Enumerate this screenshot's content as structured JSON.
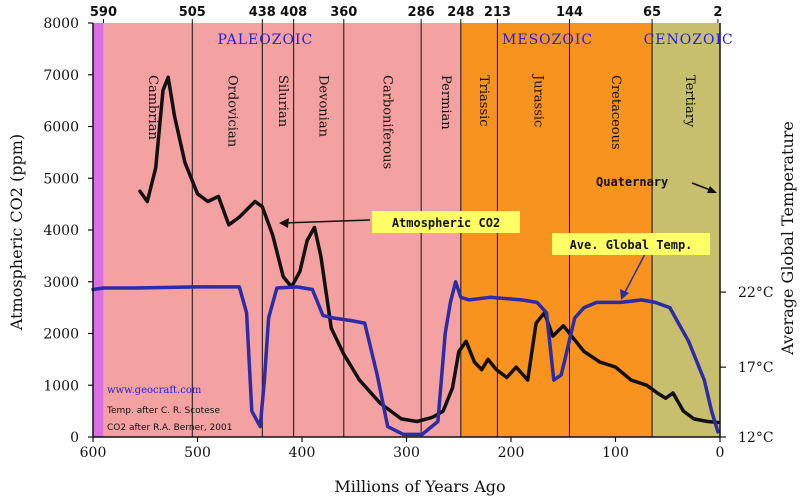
{
  "chart_data": {
    "type": "line",
    "xlabel": "Millions of Years Ago",
    "ylabel": "Atmospheric CO2 (ppm)",
    "y2label": "Average Global Temperature",
    "xlim": [
      600,
      0
    ],
    "ylim": [
      0,
      8000
    ],
    "x_ticks": [
      {
        "v": 600,
        "label": "600"
      },
      {
        "v": 500,
        "label": "500"
      },
      {
        "v": 400,
        "label": "400"
      },
      {
        "v": 300,
        "label": "300"
      },
      {
        "v": 200,
        "label": "200"
      },
      {
        "v": 100,
        "label": "100"
      },
      {
        "v": 0,
        "label": "0"
      }
    ],
    "y_ticks": [
      {
        "v": 0,
        "label": "0"
      },
      {
        "v": 1000,
        "label": "1000"
      },
      {
        "v": 2000,
        "label": "2000"
      },
      {
        "v": 3000,
        "label": "3000"
      },
      {
        "v": 4000,
        "label": "4000"
      },
      {
        "v": 5000,
        "label": "5000"
      },
      {
        "v": 6000,
        "label": "6000"
      },
      {
        "v": 7000,
        "label": "7000"
      },
      {
        "v": 8000,
        "label": "8000"
      }
    ],
    "y2_ticks": [
      {
        "temp": "22°C",
        "at_ppm": 2800
      },
      {
        "temp": "17°C",
        "at_ppm": 1350
      },
      {
        "temp": "12°C",
        "at_ppm": 0
      }
    ],
    "top_ticks": [
      {
        "v": 590,
        "label": "590"
      },
      {
        "v": 505,
        "label": "505"
      },
      {
        "v": 438,
        "label": "438"
      },
      {
        "v": 408,
        "label": "408"
      },
      {
        "v": 360,
        "label": "360"
      },
      {
        "v": 286,
        "label": "286"
      },
      {
        "v": 248,
        "label": "248"
      },
      {
        "v": 213,
        "label": "213"
      },
      {
        "v": 144,
        "label": "144"
      },
      {
        "v": 65,
        "label": "65"
      },
      {
        "v": 2,
        "label": "2"
      }
    ],
    "eras": [
      {
        "name": "PALEOZOIC",
        "from": 590,
        "to": 248,
        "color": "#f4a1a1"
      },
      {
        "name": "MESOZOIC",
        "from": 248,
        "to": 65,
        "color": "#f7931e"
      },
      {
        "name": "CENOZOIC",
        "from": 65,
        "to": 2,
        "color": "#c7be6e"
      }
    ],
    "pre_cambrian_color": "#d96fe0",
    "periods": [
      {
        "name": "Cambrian",
        "from": 590,
        "to": 505
      },
      {
        "name": "Ordovician",
        "from": 505,
        "to": 438
      },
      {
        "name": "Silurian",
        "from": 438,
        "to": 408
      },
      {
        "name": "Devonian",
        "from": 408,
        "to": 360
      },
      {
        "name": "Carboniferous",
        "from": 360,
        "to": 286
      },
      {
        "name": "Permian",
        "from": 286,
        "to": 248
      },
      {
        "name": "Triassic",
        "from": 248,
        "to": 213
      },
      {
        "name": "Jurassic",
        "from": 213,
        "to": 144
      },
      {
        "name": "Cretaceous",
        "from": 144,
        "to": 65
      },
      {
        "name": "Tertiary",
        "from": 65,
        "to": 2
      }
    ],
    "series": [
      {
        "name": "Atmospheric CO2",
        "color": "#111111",
        "points": [
          [
            555,
            4750
          ],
          [
            548,
            4550
          ],
          [
            540,
            5200
          ],
          [
            533,
            6700
          ],
          [
            528,
            6950
          ],
          [
            522,
            6200
          ],
          [
            512,
            5300
          ],
          [
            500,
            4700
          ],
          [
            490,
            4550
          ],
          [
            480,
            4650
          ],
          [
            470,
            4100
          ],
          [
            460,
            4250
          ],
          [
            445,
            4550
          ],
          [
            438,
            4450
          ],
          [
            428,
            3900
          ],
          [
            418,
            3100
          ],
          [
            410,
            2900
          ],
          [
            402,
            3200
          ],
          [
            395,
            3800
          ],
          [
            388,
            4050
          ],
          [
            382,
            3500
          ],
          [
            372,
            2100
          ],
          [
            360,
            1600
          ],
          [
            345,
            1100
          ],
          [
            325,
            650
          ],
          [
            305,
            350
          ],
          [
            290,
            300
          ],
          [
            275,
            380
          ],
          [
            265,
            500
          ],
          [
            256,
            950
          ],
          [
            250,
            1650
          ],
          [
            243,
            1850
          ],
          [
            235,
            1450
          ],
          [
            228,
            1300
          ],
          [
            222,
            1500
          ],
          [
            214,
            1300
          ],
          [
            204,
            1150
          ],
          [
            195,
            1350
          ],
          [
            184,
            1100
          ],
          [
            176,
            2200
          ],
          [
            168,
            2400
          ],
          [
            160,
            1950
          ],
          [
            150,
            2150
          ],
          [
            140,
            1900
          ],
          [
            130,
            1650
          ],
          [
            115,
            1450
          ],
          [
            100,
            1350
          ],
          [
            85,
            1100
          ],
          [
            70,
            1000
          ],
          [
            60,
            850
          ],
          [
            52,
            750
          ],
          [
            45,
            850
          ],
          [
            35,
            500
          ],
          [
            25,
            350
          ],
          [
            12,
            300
          ],
          [
            2,
            280
          ]
        ]
      },
      {
        "name": "Ave. Global Temp.",
        "color": "#2c2ca6",
        "points": [
          [
            600,
            2850
          ],
          [
            590,
            2880
          ],
          [
            560,
            2880
          ],
          [
            500,
            2900
          ],
          [
            460,
            2900
          ],
          [
            453,
            2400
          ],
          [
            448,
            500
          ],
          [
            440,
            200
          ],
          [
            436,
            1100
          ],
          [
            432,
            2300
          ],
          [
            424,
            2880
          ],
          [
            405,
            2900
          ],
          [
            390,
            2850
          ],
          [
            380,
            2350
          ],
          [
            370,
            2300
          ],
          [
            353,
            2250
          ],
          [
            340,
            2200
          ],
          [
            328,
            1200
          ],
          [
            318,
            200
          ],
          [
            303,
            50
          ],
          [
            285,
            50
          ],
          [
            270,
            300
          ],
          [
            263,
            2000
          ],
          [
            258,
            2600
          ],
          [
            253,
            3000
          ],
          [
            248,
            2700
          ],
          [
            240,
            2650
          ],
          [
            220,
            2700
          ],
          [
            190,
            2650
          ],
          [
            175,
            2600
          ],
          [
            166,
            2400
          ],
          [
            159,
            1100
          ],
          [
            152,
            1200
          ],
          [
            146,
            1700
          ],
          [
            139,
            2300
          ],
          [
            130,
            2500
          ],
          [
            118,
            2600
          ],
          [
            95,
            2600
          ],
          [
            75,
            2650
          ],
          [
            62,
            2600
          ],
          [
            48,
            2500
          ],
          [
            30,
            1850
          ],
          [
            15,
            1100
          ],
          [
            8,
            500
          ],
          [
            2,
            100
          ]
        ]
      }
    ],
    "annotations": {
      "co2_callout": "Atmospheric CO2",
      "temp_callout": "Ave. Global Temp.",
      "quaternary": "Quaternary"
    },
    "credits": {
      "site": "www.geocraft.com",
      "temp_source": "Temp. after C. R. Scotese",
      "co2_source": "CO2 after R.A. Berner, 2001"
    }
  }
}
